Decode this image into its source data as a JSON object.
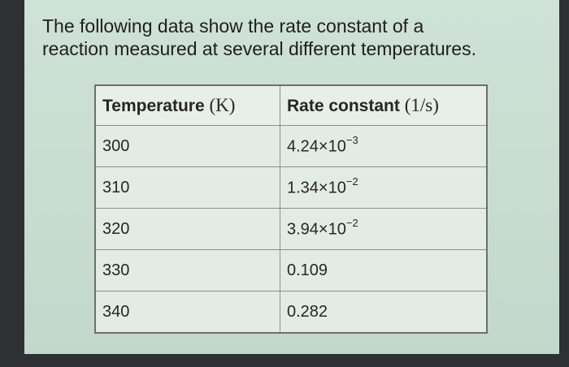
{
  "question": {
    "line1": "The following data show the rate constant of a",
    "line2": "reaction measured at several different temperatures."
  },
  "table": {
    "headers": [
      {
        "label": "Temperature",
        "unit": "(K)"
      },
      {
        "label": "Rate constant",
        "unit": "(1/s)"
      }
    ],
    "rows": [
      {
        "temperature": "300",
        "rate_mantissa": "4.24×10",
        "rate_exponent": "−3"
      },
      {
        "temperature": "310",
        "rate_mantissa": "1.34×10",
        "rate_exponent": "−2"
      },
      {
        "temperature": "320",
        "rate_mantissa": "3.94×10",
        "rate_exponent": "−2"
      },
      {
        "temperature": "330",
        "rate_mantissa": "0.109",
        "rate_exponent": ""
      },
      {
        "temperature": "340",
        "rate_mantissa": "0.282",
        "rate_exponent": ""
      }
    ]
  }
}
